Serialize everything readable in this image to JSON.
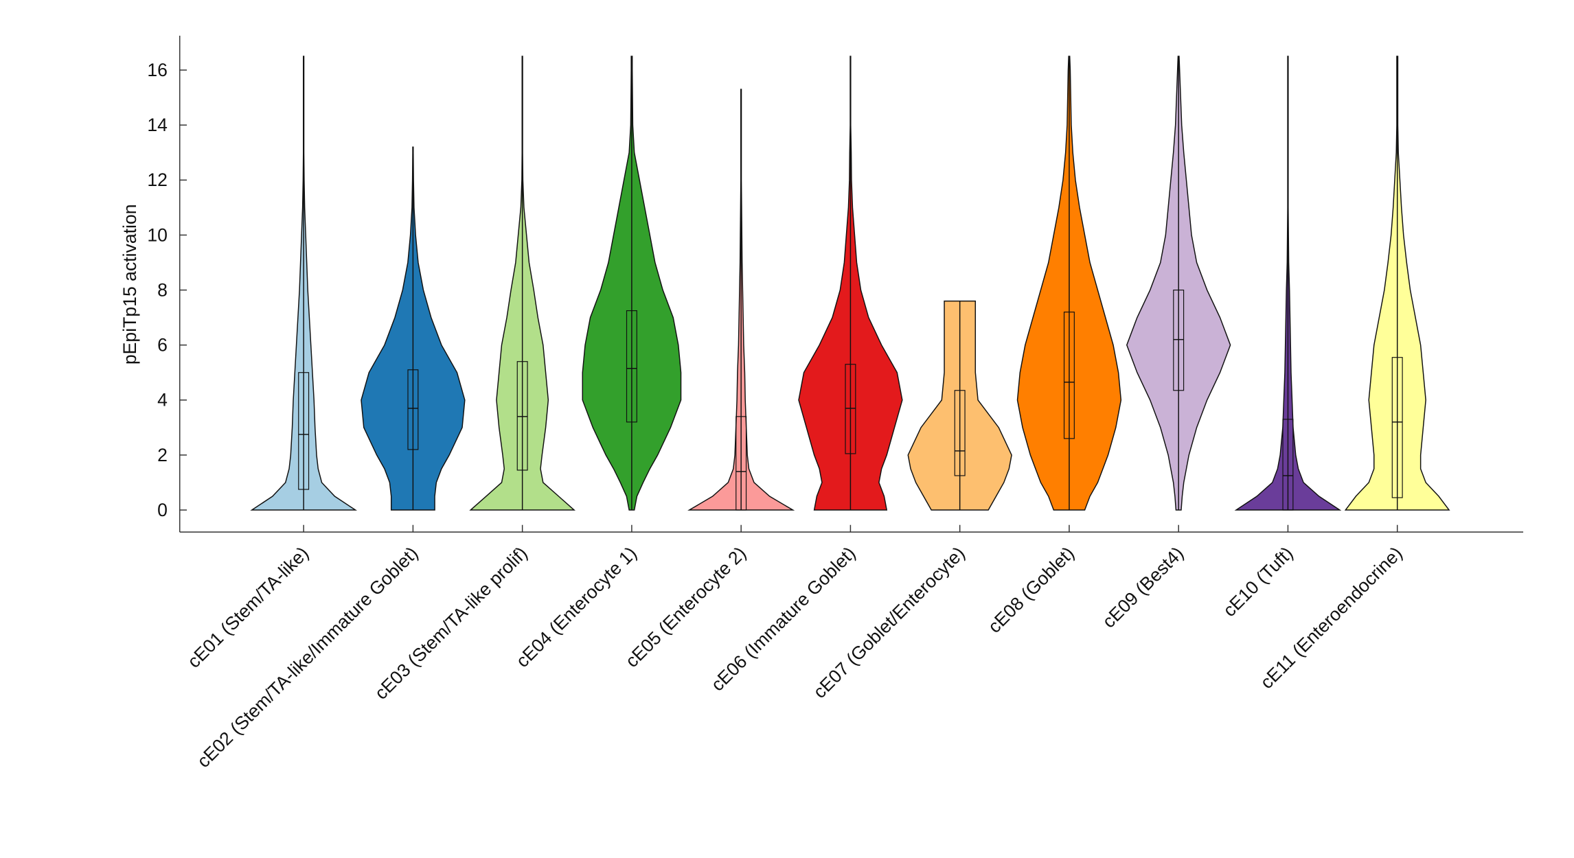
{
  "chart_data": {
    "type": "violin",
    "ylabel": "pEpiTp15 activation",
    "ylim": [
      -0.8,
      17.25
    ],
    "yticks": [
      0,
      2,
      4,
      6,
      8,
      10,
      12,
      14,
      16
    ],
    "categories": [
      "cE01 (Stem/TA-like)",
      "cE02 (Stem/TA-like/Immature Goblet)",
      "cE03 (Stem/TA-like prolif)",
      "cE04 (Enterocyte 1)",
      "cE05 (Enterocyte 2)",
      "cE06 (Immature Goblet)",
      "cE07 (Goblet/Enterocyte)",
      "cE08 (Goblet)",
      "cE09 (Best4)",
      "cE10 (Tuft)",
      "cE11 (Enteroendocrine)"
    ],
    "density_y": [
      0,
      0.5,
      1,
      1.5,
      2,
      3,
      4,
      5,
      6,
      7,
      8,
      9,
      10,
      11,
      12,
      13,
      14,
      15,
      16,
      16.5
    ],
    "violins": [
      {
        "color": "#a6cee3",
        "widths": [
          1.0,
          0.6,
          0.35,
          0.28,
          0.25,
          0.22,
          0.2,
          0.17,
          0.14,
          0.11,
          0.08,
          0.06,
          0.04,
          0.02,
          0.01,
          0.005,
          0.005,
          0.005,
          0.005,
          0.005
        ],
        "min": 0,
        "q1": 0.75,
        "median": 2.75,
        "q3": 5.0,
        "max": 16.5
      },
      {
        "color": "#1f78b4",
        "widths": [
          0.42,
          0.42,
          0.45,
          0.55,
          0.7,
          0.95,
          1.0,
          0.85,
          0.55,
          0.35,
          0.2,
          0.1,
          0.05,
          0.02,
          0.01,
          0.005,
          null,
          null,
          null,
          null
        ],
        "min": 0,
        "q1": 2.2,
        "median": 3.7,
        "q3": 5.1,
        "max": 13.2
      },
      {
        "color": "#b2df8a",
        "widths": [
          1.0,
          0.7,
          0.4,
          0.35,
          0.38,
          0.45,
          0.5,
          0.45,
          0.4,
          0.3,
          0.22,
          0.13,
          0.08,
          0.03,
          0.01,
          0.005,
          0.005,
          0.005,
          0.005,
          0.005
        ],
        "min": 0,
        "q1": 1.45,
        "median": 3.4,
        "q3": 5.4,
        "max": 16.5
      },
      {
        "color": "#33a02c",
        "widths": [
          0.05,
          0.1,
          0.22,
          0.35,
          0.5,
          0.75,
          0.95,
          0.95,
          0.9,
          0.8,
          0.6,
          0.45,
          0.35,
          0.25,
          0.15,
          0.05,
          0.02,
          0.015,
          0.01,
          0.01
        ],
        "min": 0,
        "q1": 3.2,
        "median": 5.15,
        "q3": 7.25,
        "max": 16.5
      },
      {
        "color": "#fb9a99",
        "widths": [
          1.0,
          0.55,
          0.25,
          0.15,
          0.12,
          0.1,
          0.08,
          0.07,
          0.05,
          0.04,
          0.03,
          0.02,
          0.015,
          0.01,
          0.005,
          0.005,
          0.005,
          0.005,
          null,
          null
        ],
        "min": 0,
        "q1": 0,
        "median": 1.4,
        "q3": 3.4,
        "max": 15.3
      },
      {
        "color": "#e31a1c",
        "widths": [
          0.7,
          0.65,
          0.55,
          0.6,
          0.7,
          0.85,
          1.0,
          0.9,
          0.6,
          0.35,
          0.2,
          0.12,
          0.08,
          0.04,
          0.02,
          0.015,
          0.005,
          0.005,
          0.005,
          0.005
        ],
        "min": 0,
        "q1": 2.05,
        "median": 3.7,
        "q3": 5.3,
        "max": 16.5
      },
      {
        "color": "#fdbf6f",
        "widths": [
          0.55,
          0.7,
          0.85,
          0.95,
          1.0,
          0.75,
          0.35,
          0.3,
          0.3,
          0.3,
          null,
          null,
          null,
          null,
          null,
          null,
          null,
          null,
          null,
          null
        ],
        "min": 0,
        "q1": 1.25,
        "median": 2.15,
        "q3": 4.35,
        "max": 7.6
      },
      {
        "color": "#ff7f00",
        "widths": [
          0.3,
          0.4,
          0.55,
          0.65,
          0.75,
          0.9,
          1.0,
          0.95,
          0.85,
          0.7,
          0.55,
          0.4,
          0.3,
          0.2,
          0.12,
          0.07,
          0.04,
          0.03,
          0.02,
          0.01
        ],
        "min": 0,
        "q1": 2.6,
        "median": 4.65,
        "q3": 7.2,
        "max": 16.5
      },
      {
        "color": "#cab2d6",
        "widths": [
          0.05,
          0.07,
          0.1,
          0.15,
          0.2,
          0.35,
          0.55,
          0.8,
          1.0,
          0.8,
          0.55,
          0.35,
          0.25,
          0.2,
          0.15,
          0.1,
          0.06,
          0.04,
          0.02,
          0.01
        ],
        "min": 0,
        "q1": 4.35,
        "median": 6.2,
        "q3": 8.0,
        "max": 16.5
      },
      {
        "color": "#6a3d9a",
        "widths": [
          1.0,
          0.6,
          0.3,
          0.2,
          0.15,
          0.1,
          0.08,
          0.06,
          0.05,
          0.04,
          0.03,
          0.015,
          0.01,
          0.005,
          0.005,
          0.005,
          0.005,
          0.005,
          0.005,
          0.005
        ],
        "min": 0,
        "q1": 0,
        "median": 1.25,
        "q3": 3.3,
        "max": 16.5
      },
      {
        "color": "#ffff99",
        "widths": [
          1.0,
          0.8,
          0.55,
          0.45,
          0.45,
          0.5,
          0.55,
          0.5,
          0.45,
          0.35,
          0.25,
          0.18,
          0.12,
          0.08,
          0.05,
          0.02,
          0.01,
          0.01,
          0.01,
          0.01
        ],
        "min": 0,
        "q1": 0.45,
        "median": 3.2,
        "q3": 5.55,
        "max": 16.5
      }
    ]
  }
}
